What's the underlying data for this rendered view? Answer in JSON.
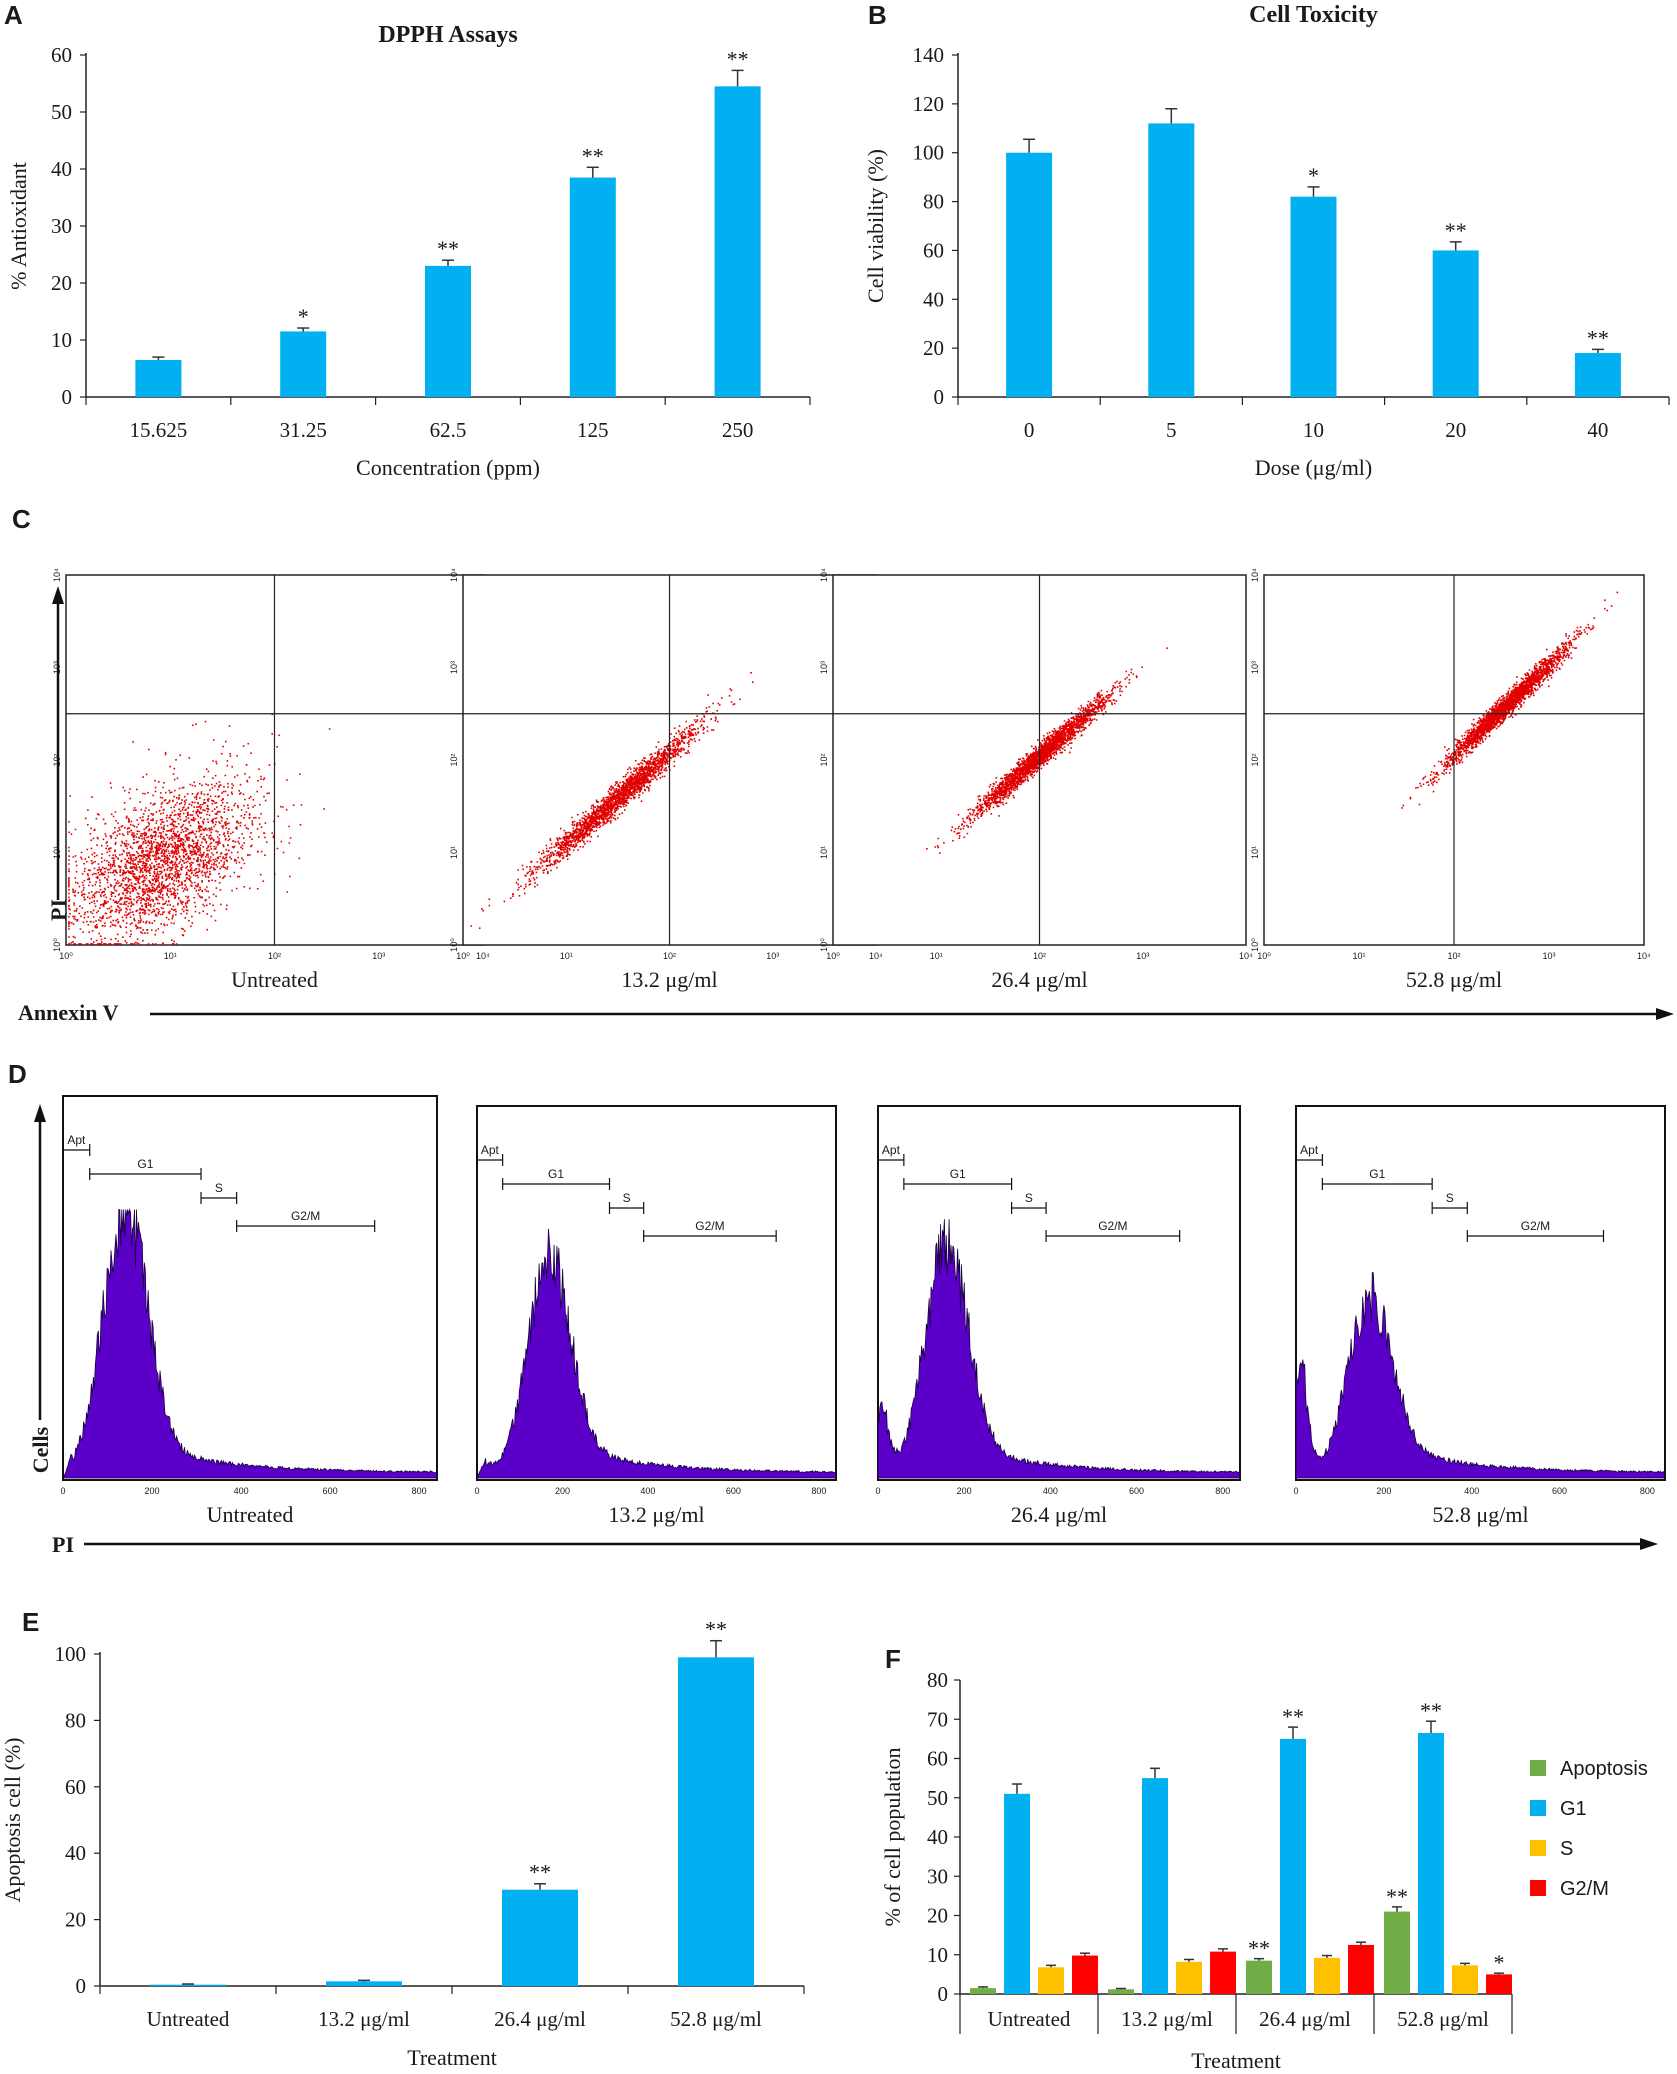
{
  "colors": {
    "bar": "#00b0f0",
    "apoptosis": "#70ad47",
    "g1": "#00b0f0",
    "s": "#ffc000",
    "g2m": "#ff0000",
    "dots": "#e00000",
    "histogram": "#5b00c8"
  },
  "panels": {
    "A": "A",
    "B": "B",
    "C": "C",
    "D": "D",
    "E": "E",
    "F": "F"
  },
  "chart_data": [
    {
      "id": "A",
      "type": "bar",
      "title": "DPPH Assays",
      "xlabel": "Concentration (ppm)",
      "ylabel": "% Antioxidant",
      "categories": [
        "15.625",
        "31.25",
        "62.5",
        "125",
        "250"
      ],
      "values": [
        6.5,
        11.5,
        23,
        38.5,
        54.5
      ],
      "errors": [
        0.5,
        0.6,
        1.0,
        1.8,
        2.8
      ],
      "annotations": [
        "",
        "*",
        "**",
        "**",
        "**"
      ],
      "ylim": [
        0,
        60
      ],
      "yticks": [
        "0",
        "10",
        "20",
        "30",
        "40",
        "50",
        "60"
      ],
      "ytick_values": [
        0,
        10,
        20,
        30,
        40,
        50,
        60
      ]
    },
    {
      "id": "B",
      "type": "bar",
      "title": "Cell Toxicity",
      "xlabel": "Dose (μg/ml)",
      "ylabel": "Cell viability (%)",
      "categories": [
        "0",
        "5",
        "10",
        "20",
        "40"
      ],
      "values": [
        100,
        112,
        82,
        60,
        18
      ],
      "errors": [
        5.5,
        6,
        4,
        3.5,
        1.5
      ],
      "annotations": [
        "",
        "",
        "*",
        "**",
        "**"
      ],
      "ylim": [
        0,
        140
      ],
      "yticks": [
        "0",
        "20",
        "40",
        "60",
        "80",
        "100",
        "120",
        "140"
      ],
      "ytick_values": [
        0,
        20,
        40,
        60,
        80,
        100,
        120,
        140
      ]
    },
    {
      "id": "E",
      "type": "bar",
      "title": "",
      "xlabel": "Treatment",
      "ylabel": "Apoptosis cell  (%)",
      "categories": [
        "Untreated",
        "13.2 μg/ml",
        "26.4 μg/ml",
        "52.8 μg/ml"
      ],
      "values": [
        0.4,
        1.4,
        29,
        99
      ],
      "errors": [
        0.2,
        0.3,
        1.8,
        5
      ],
      "annotations": [
        "",
        "",
        "**",
        "**"
      ],
      "ylim": [
        0,
        100
      ],
      "yticks": [
        "0",
        "20",
        "40",
        "60",
        "80",
        "100"
      ],
      "ytick_values": [
        0,
        20,
        40,
        60,
        80,
        100
      ]
    },
    {
      "id": "F",
      "type": "bar",
      "title": "",
      "xlabel": "Treatment",
      "ylabel": "% of cell population",
      "categories": [
        "Untreated",
        "13.2 μg/ml",
        "26.4 μg/ml",
        "52.8 μg/ml"
      ],
      "series": [
        {
          "name": "Apoptosis",
          "values": [
            1.5,
            1.2,
            8.5,
            21
          ],
          "errors": [
            0.3,
            0.2,
            0.5,
            1.2
          ],
          "annotations": [
            "",
            "",
            "**",
            "**"
          ]
        },
        {
          "name": "G1",
          "values": [
            51,
            55,
            65,
            66.5
          ],
          "errors": [
            2.5,
            2.5,
            3,
            3
          ],
          "annotations": [
            "",
            "",
            "**",
            "**"
          ]
        },
        {
          "name": "S",
          "values": [
            6.8,
            8.2,
            9.2,
            7.3
          ],
          "errors": [
            0.5,
            0.6,
            0.6,
            0.5
          ],
          "annotations": [
            "",
            "",
            "",
            ""
          ]
        },
        {
          "name": "G2/M",
          "values": [
            9.8,
            10.8,
            12.5,
            5
          ],
          "errors": [
            0.6,
            0.7,
            0.7,
            0.3
          ],
          "annotations": [
            "",
            "",
            "",
            "*"
          ]
        }
      ],
      "ylim": [
        0,
        80
      ],
      "yticks": [
        "0",
        "10",
        "20",
        "30",
        "40",
        "50",
        "60",
        "70",
        "80"
      ],
      "ytick_values": [
        0,
        10,
        20,
        30,
        40,
        50,
        60,
        70,
        80
      ],
      "legend_position": "right"
    },
    {
      "id": "C",
      "type": "scatter",
      "title": "",
      "xlabel": "Annexin V",
      "ylabel": "PI",
      "ticks": [
        "10⁰",
        "10¹",
        "10²",
        "10³",
        "10⁴"
      ],
      "panels": [
        {
          "label": "Untreated",
          "center": [
            0.7,
            0.8
          ],
          "spread": 0.45,
          "count": 2600
        },
        {
          "label": "13.2 μg/ml",
          "center": [
            1.5,
            1.6
          ],
          "spread": 0.22,
          "count": 2200
        },
        {
          "label": "26.4 μg/ml",
          "center": [
            2.0,
            2.05
          ],
          "spread": 0.18,
          "count": 2400
        },
        {
          "label": "52.8 μg/ml",
          "center": [
            2.55,
            2.6
          ],
          "spread": 0.18,
          "count": 2400
        }
      ]
    },
    {
      "id": "D",
      "type": "area",
      "title": "",
      "xlabel": "PI",
      "ylabel": "Cells",
      "xticks": [
        "0",
        "200",
        "400",
        "600",
        "800"
      ],
      "xtick_values": [
        0,
        200,
        400,
        600,
        800
      ],
      "gates": [
        "Apt",
        "G1",
        "S",
        "G2/M"
      ],
      "panels": [
        {
          "label": "Untreated",
          "peak": 140,
          "height": 0.85,
          "apt": 0.02
        },
        {
          "label": "13.2 μg/ml",
          "peak": 170,
          "height": 0.7,
          "apt": 0.04
        },
        {
          "label": "26.4 μg/ml",
          "peak": 160,
          "height": 0.75,
          "apt": 0.18
        },
        {
          "label": "52.8 μg/ml",
          "peak": 170,
          "height": 0.55,
          "apt": 0.35
        }
      ]
    }
  ]
}
